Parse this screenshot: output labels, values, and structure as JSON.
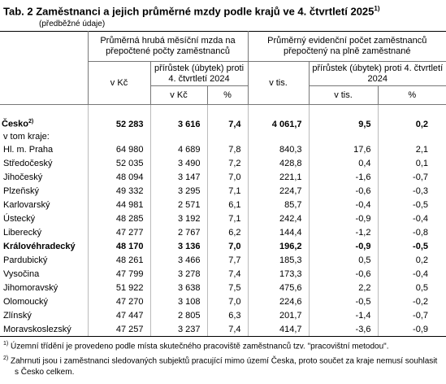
{
  "header": {
    "title": "Tab. 2 Zaměstnanci a jejich průměrné mzdy podle krajů ve 4. čtvrtletí 2025",
    "title_note": "1)",
    "subtitle": "(předběžné údaje)"
  },
  "table": {
    "groups": [
      "Průměrná hrubá měsíční mzda na přepočtené počty zaměstnanců",
      "Průměrný evidenční počet zaměstnanců přepočtený na plně zaměstnané"
    ],
    "subheaders": [
      "v Kč",
      "přírůstek (úbytek) proti 4. čtvrtletí 2024",
      "v Kč",
      "%",
      "v tis.",
      "přírůstek (úbytek) proti 4. čtvrtletí 2024",
      "v tis.",
      "%"
    ],
    "total": {
      "name": "Česko",
      "note": "2)",
      "cells": [
        "52 283",
        "3 616",
        "7,4",
        "4 061,7",
        "9,5",
        "0,2"
      ]
    },
    "section_label": "v tom kraje:",
    "rows": [
      {
        "name": "Hl. m. Praha",
        "cells": [
          "64 980",
          "4 689",
          "7,8",
          "840,3",
          "17,6",
          "2,1"
        ]
      },
      {
        "name": "Středočeský",
        "cells": [
          "52 035",
          "3 490",
          "7,2",
          "428,8",
          "0,4",
          "0,1"
        ]
      },
      {
        "name": "Jihočeský",
        "cells": [
          "48 094",
          "3 147",
          "7,0",
          "221,1",
          "-1,6",
          "-0,7"
        ]
      },
      {
        "name": "Plzeňský",
        "cells": [
          "49 332",
          "3 295",
          "7,1",
          "224,7",
          "-0,6",
          "-0,3"
        ]
      },
      {
        "name": "Karlovarský",
        "cells": [
          "44 981",
          "2 571",
          "6,1",
          "85,7",
          "-0,4",
          "-0,5"
        ]
      },
      {
        "name": "Ústecký",
        "cells": [
          "48 285",
          "3 192",
          "7,1",
          "242,4",
          "-0,9",
          "-0,4"
        ]
      },
      {
        "name": "Liberecký",
        "cells": [
          "47 277",
          "2 767",
          "6,2",
          "144,4",
          "-1,2",
          "-0,8"
        ]
      },
      {
        "name": "Královéhradecký",
        "bold": true,
        "cells": [
          "48 170",
          "3 136",
          "7,0",
          "196,2",
          "-0,9",
          "-0,5"
        ]
      },
      {
        "name": "Pardubický",
        "cells": [
          "48 261",
          "3 466",
          "7,7",
          "185,3",
          "0,5",
          "0,2"
        ]
      },
      {
        "name": "Vysočina",
        "cells": [
          "47 799",
          "3 278",
          "7,4",
          "173,3",
          "-0,6",
          "-0,4"
        ]
      },
      {
        "name": "Jihomoravský",
        "cells": [
          "51 922",
          "3 638",
          "7,5",
          "475,6",
          "2,2",
          "0,5"
        ]
      },
      {
        "name": "Olomoucký",
        "cells": [
          "47 270",
          "3 108",
          "7,0",
          "224,6",
          "-0,5",
          "-0,2"
        ]
      },
      {
        "name": "Zlínský",
        "cells": [
          "47 447",
          "2 805",
          "6,3",
          "201,7",
          "-1,4",
          "-0,7"
        ]
      },
      {
        "name": "Moravskoslezský",
        "cells": [
          "47 257",
          "3 237",
          "7,4",
          "414,7",
          "-3,6",
          "-0,9"
        ]
      }
    ]
  },
  "footnotes": [
    {
      "mark": "1)",
      "text": "Územní třídění je provedeno podle místa skutečného pracoviště zaměstnanců tzv. \"pracovištní metodou\"."
    },
    {
      "mark": "2)",
      "text": "Zahrnuti jsou i zaměstnanci sledovaných subjektů pracující mimo území Česka, proto součet za kraje nemusí souhlasit s Česko celkem."
    }
  ]
}
